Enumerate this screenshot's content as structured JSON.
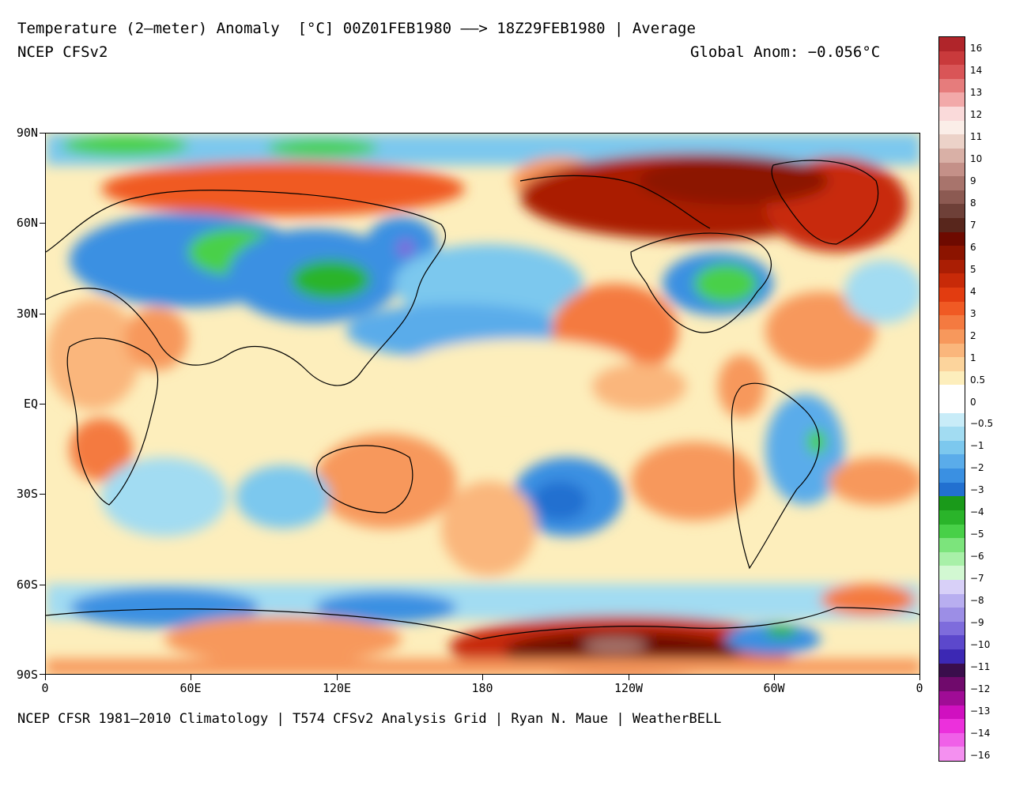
{
  "header": {
    "title_line": "Temperature (2—meter) Anomaly  [°C] 00Z01FEB1980 ——> 18Z29FEB1980 | Average",
    "model": "NCEP CFSv2",
    "global_anom": "Global Anom: −0.056°C"
  },
  "footer": {
    "credits": "NCEP CFSR 1981—2010 Climatology | T574 CFSv2 Analysis Grid | Ryan N. Maue | WeatherBELL"
  },
  "axes": {
    "lat_labels": [
      "90N",
      "60N",
      "30N",
      "EQ",
      "30S",
      "60S",
      "90S"
    ],
    "lon_labels": [
      "0",
      "60E",
      "120E",
      "180",
      "120W",
      "60W",
      "0"
    ]
  },
  "legend": {
    "labels": [
      "16",
      "14",
      "13",
      "12",
      "11",
      "10",
      "9",
      "8",
      "7",
      "6",
      "5",
      "4",
      "3",
      "2",
      "1",
      "0.5",
      "0",
      "−0.5",
      "−1",
      "−2",
      "−3",
      "−4",
      "−5",
      "−6",
      "−7",
      "−8",
      "−9",
      "−10",
      "−11",
      "−12",
      "−13",
      "−14",
      "−16"
    ],
    "colors": [
      "#b0252a",
      "#c93a3c",
      "#d95557",
      "#e67c7c",
      "#f2a9a9",
      "#fadada",
      "#fbeee8",
      "#ecd2c8",
      "#d9b0a6",
      "#c49088",
      "#a8746c",
      "#8c5a52",
      "#6e4038",
      "#58261c",
      "#6e0a00",
      "#8c1400",
      "#aa1e04",
      "#c82a08",
      "#e23c10",
      "#f05a24",
      "#f47a40",
      "#f7985c",
      "#fab67c",
      "#fcd49c",
      "#fdeebc",
      "#ffffff",
      "#ffffff",
      "#c8ecf8",
      "#a2dcf2",
      "#7cc8ee",
      "#5aacea",
      "#3a90e2",
      "#2270d0",
      "#1a9a1a",
      "#2ab42a",
      "#48d048",
      "#7ce47c",
      "#a8f0a8",
      "#d2f8d2",
      "#d8d0f8",
      "#b8aef0",
      "#9c8ee6",
      "#7e6cdc",
      "#5c48cc",
      "#3c28b4",
      "#3a0e4c",
      "#700a6c",
      "#a00c96",
      "#d010c0",
      "#ec30dc",
      "#f060e8",
      "#f490f0"
    ]
  },
  "map": {
    "background_color": "#f6c090"
  }
}
